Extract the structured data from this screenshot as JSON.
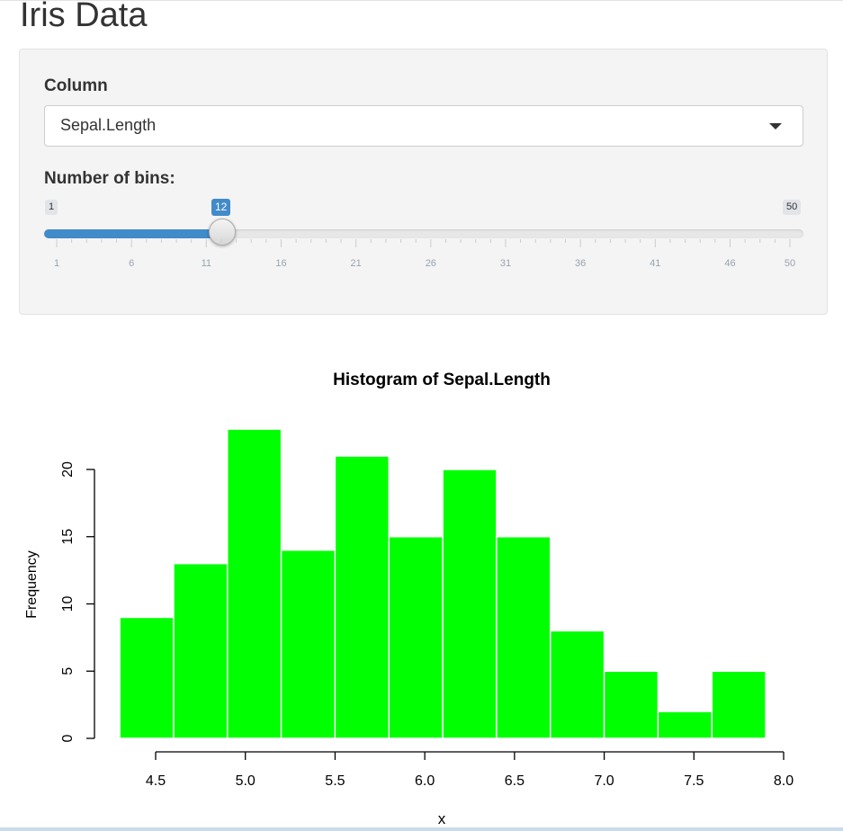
{
  "page": {
    "title": "Iris Data"
  },
  "controls": {
    "column": {
      "label": "Column",
      "selected": "Sepal.Length"
    },
    "bins": {
      "label": "Number of bins:",
      "min": 1,
      "max": 50,
      "value": 12,
      "min_label": "1",
      "max_label": "50",
      "value_label": "12",
      "ticks": [
        "1",
        "6",
        "11",
        "16",
        "21",
        "26",
        "31",
        "36",
        "41",
        "46",
        "50"
      ]
    }
  },
  "colors": {
    "bar_fill": "#00ff00",
    "bar_border": "#ffffff",
    "slider_accent": "#428bca"
  },
  "chart_data": {
    "type": "bar",
    "title": "Histogram of Sepal.Length",
    "xlabel": "x",
    "ylabel": "Frequency",
    "bin_edges": [
      4.3,
      4.6,
      4.9,
      5.2,
      5.5,
      5.8,
      6.1,
      6.4,
      6.7,
      7.0,
      7.3,
      7.6,
      7.9
    ],
    "values": [
      9,
      13,
      23,
      14,
      21,
      15,
      20,
      15,
      8,
      5,
      2,
      5
    ],
    "xlim": [
      4.5,
      8.0
    ],
    "ylim": [
      0,
      20
    ],
    "x_ticks": [
      "4.5",
      "5.0",
      "5.5",
      "6.0",
      "6.5",
      "7.0",
      "7.5",
      "8.0"
    ],
    "y_ticks": [
      "0",
      "5",
      "10",
      "15",
      "20"
    ],
    "grid": false
  }
}
